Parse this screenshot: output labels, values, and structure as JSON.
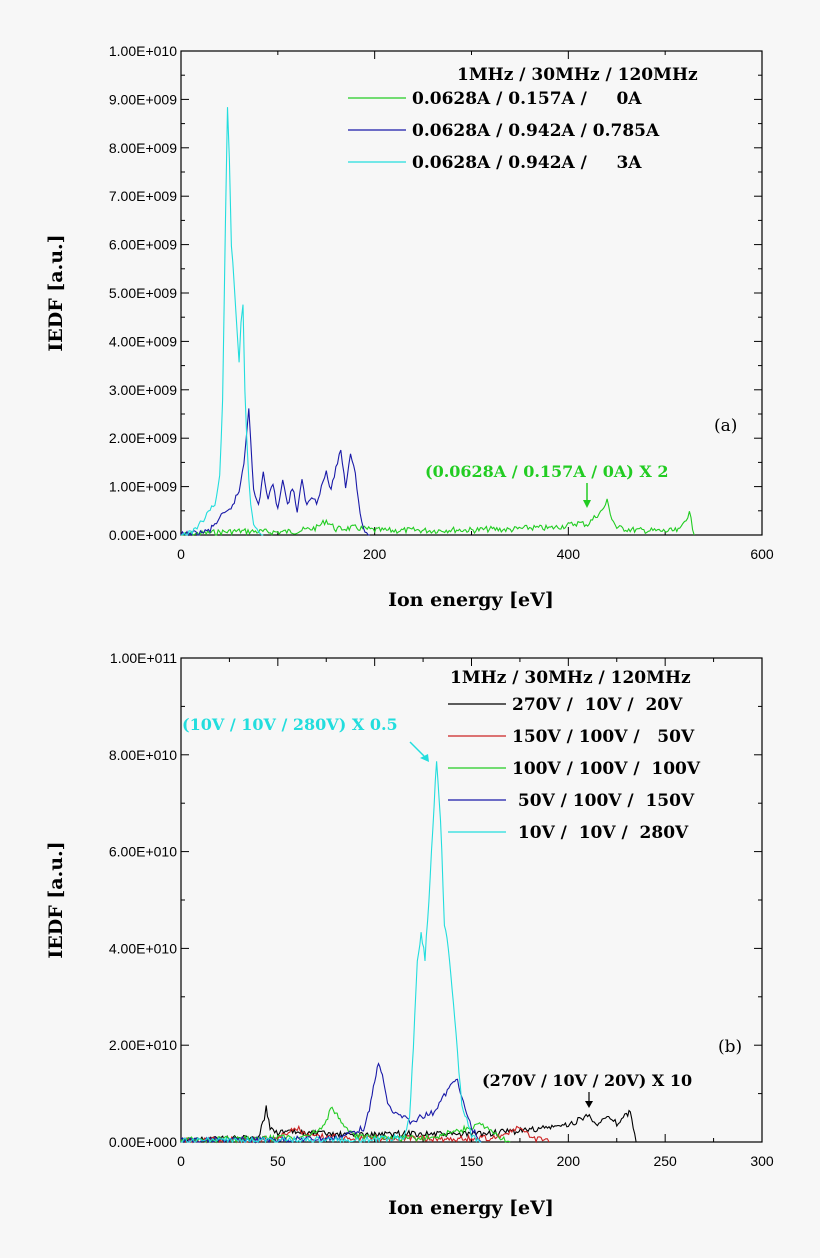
{
  "chart_data": [
    {
      "type": "line",
      "panel_label": "(a)",
      "xlabel": "Ion energy [eV]",
      "ylabel": "IEDF [a.u.]",
      "xlim": [
        0,
        600
      ],
      "ylim": [
        0,
        10000000000
      ],
      "x_ticks": [
        "0",
        "200",
        "400",
        "600"
      ],
      "y_ticks": [
        "0.00E+000",
        "1.00E+009",
        "2.00E+009",
        "3.00E+009",
        "4.00E+009",
        "5.00E+009",
        "6.00E+009",
        "7.00E+009",
        "8.00E+009",
        "9.00E+009",
        "1.00E+010"
      ],
      "legend_title": "1MHz / 30MHz / 120MHz",
      "legend_position": "top-right",
      "annotation": "(0.0628A / 0.157A / 0A) X 2",
      "series": [
        {
          "name": "0.0628A / 0.157A /     0A",
          "color": "#22cc22",
          "x": [
            0,
            20,
            40,
            60,
            80,
            100,
            120,
            140,
            150,
            160,
            180,
            200,
            220,
            240,
            260,
            280,
            300,
            320,
            340,
            360,
            380,
            400,
            410,
            420,
            430,
            435,
            440,
            445,
            450,
            470,
            500,
            515,
            520,
            525,
            530
          ],
          "y": [
            0,
            30000000,
            60000000,
            80000000,
            70000000,
            60000000,
            80000000,
            150000000,
            300000000,
            120000000,
            150000000,
            100000000,
            90000000,
            100000000,
            90000000,
            110000000,
            100000000,
            120000000,
            110000000,
            150000000,
            140000000,
            200000000,
            250000000,
            220000000,
            420000000,
            500000000,
            700000000,
            350000000,
            150000000,
            100000000,
            80000000,
            90000000,
            300000000,
            450000000,
            0
          ]
        },
        {
          "name": "0.0628A / 0.942A / 0.785A",
          "color": "#1a1aa8",
          "x": [
            0,
            20,
            30,
            40,
            50,
            60,
            65,
            70,
            72,
            75,
            80,
            85,
            90,
            95,
            100,
            105,
            110,
            115,
            120,
            125,
            130,
            135,
            140,
            145,
            150,
            155,
            160,
            165,
            170,
            175,
            180,
            185,
            190,
            195
          ],
          "y": [
            0,
            40000000,
            100000000,
            350000000,
            500000000,
            900000000,
            1500000000,
            2650000000,
            2000000000,
            900000000,
            600000000,
            1300000000,
            700000000,
            1100000000,
            500000000,
            1200000000,
            600000000,
            1000000000,
            500000000,
            1100000000,
            600000000,
            800000000,
            700000000,
            1000000000,
            1300000000,
            900000000,
            1400000000,
            1750000000,
            1000000000,
            1700000000,
            1300000000,
            400000000,
            50000000,
            0
          ]
        },
        {
          "name": "0.0628A / 0.942A /     3A",
          "color": "#22dddd",
          "x": [
            0,
            10,
            20,
            30,
            35,
            40,
            43,
            46,
            48,
            50,
            52,
            55,
            58,
            60,
            62,
            64,
            66,
            68,
            70,
            72,
            75,
            80,
            85
          ],
          "y": [
            0,
            40000000,
            250000000,
            500000000,
            650000000,
            1200000000,
            2800000000,
            6500000000,
            8900000000,
            7800000000,
            6000000000,
            5200000000,
            4200000000,
            3600000000,
            4400000000,
            4800000000,
            3000000000,
            2000000000,
            1100000000,
            600000000,
            250000000,
            50000000,
            0
          ]
        }
      ]
    },
    {
      "type": "line",
      "panel_label": "(b)",
      "xlabel": "Ion energy [eV]",
      "ylabel": "IEDF [a.u.]",
      "xlim": [
        0,
        300
      ],
      "ylim": [
        0,
        100000000000
      ],
      "x_ticks": [
        "0",
        "50",
        "100",
        "150",
        "200",
        "250",
        "300"
      ],
      "y_ticks": [
        "0.00E+000",
        "2.00E+010",
        "4.00E+010",
        "6.00E+010",
        "8.00E+010",
        "1.00E+011"
      ],
      "legend_title": "1MHz / 30MHz / 120MHz",
      "legend_position": "top-right",
      "annotations": [
        "(10V / 10V / 280V) X 0.5",
        "(270V / 10V / 20V) X 10"
      ],
      "series": [
        {
          "name": "270V /  10V /  20V",
          "color": "#000000",
          "x": [
            0,
            20,
            40,
            43,
            44,
            46,
            50,
            60,
            80,
            100,
            120,
            140,
            160,
            180,
            190,
            200,
            205,
            210,
            215,
            220,
            225,
            230,
            232,
            235,
            300
          ],
          "y": [
            500000000,
            700000000,
            1000000000,
            5000000000,
            7000000000,
            3000000000,
            2000000000,
            2000000000,
            1500000000,
            1500000000,
            1800000000,
            1500000000,
            1800000000,
            2500000000,
            3000000000,
            3500000000,
            4500000000,
            5500000000,
            4000000000,
            5000000000,
            3800000000,
            5500000000,
            6500000000,
            0,
            0
          ]
        },
        {
          "name": "150V / 100V /   50V",
          "color": "#cc2222",
          "x": [
            0,
            30,
            50,
            57,
            60,
            65,
            80,
            100,
            120,
            140,
            160,
            170,
            175,
            180,
            185,
            190
          ],
          "y": [
            300000000,
            500000000,
            800000000,
            2500000000,
            3000000000,
            1200000000,
            1000000000,
            800000000,
            700000000,
            600000000,
            800000000,
            2000000000,
            3000000000,
            1000000000,
            500000000,
            0
          ]
        },
        {
          "name": "100V / 100V /  100V",
          "color": "#22cc22",
          "x": [
            0,
            30,
            60,
            70,
            75,
            78,
            80,
            82,
            85,
            90,
            100,
            110,
            120,
            130,
            140,
            150,
            155,
            160,
            165,
            170
          ],
          "y": [
            400000000,
            600000000,
            1000000000,
            2000000000,
            4500000000,
            7500000000,
            6000000000,
            5000000000,
            2500000000,
            1200000000,
            800000000,
            700000000,
            800000000,
            1000000000,
            2000000000,
            3000000000,
            3500000000,
            2000000000,
            1000000000,
            0
          ]
        },
        {
          "name": " 50V / 100V /  150V",
          "color": "#1a1aa8",
          "x": [
            0,
            50,
            80,
            95,
            98,
            100,
            102,
            104,
            106,
            108,
            110,
            115,
            120,
            125,
            130,
            135,
            140,
            142,
            145,
            150,
            155
          ],
          "y": [
            300000000,
            500000000,
            800000000,
            3000000000,
            8000000000,
            13000000000,
            16000000000,
            14000000000,
            9000000000,
            7000000000,
            6000000000,
            5000000000,
            4000000000,
            5500000000,
            6000000000,
            9000000000,
            12000000000,
            13500000000,
            9000000000,
            3000000000,
            0
          ]
        },
        {
          "name": " 10V /  10V /  280V",
          "color": "#22dddd",
          "x": [
            0,
            60,
            100,
            115,
            118,
            120,
            122,
            124,
            126,
            128,
            130,
            132,
            134,
            136,
            138,
            140,
            142,
            145,
            150,
            155
          ],
          "y": [
            300000000,
            400000000,
            600000000,
            1000000000,
            5000000000,
            20000000000,
            38000000000,
            43000000000,
            38000000000,
            50000000000,
            65000000000,
            79000000000,
            67000000000,
            45000000000,
            40000000000,
            32000000000,
            22000000000,
            8000000000,
            1000000000,
            0
          ]
        }
      ]
    }
  ]
}
